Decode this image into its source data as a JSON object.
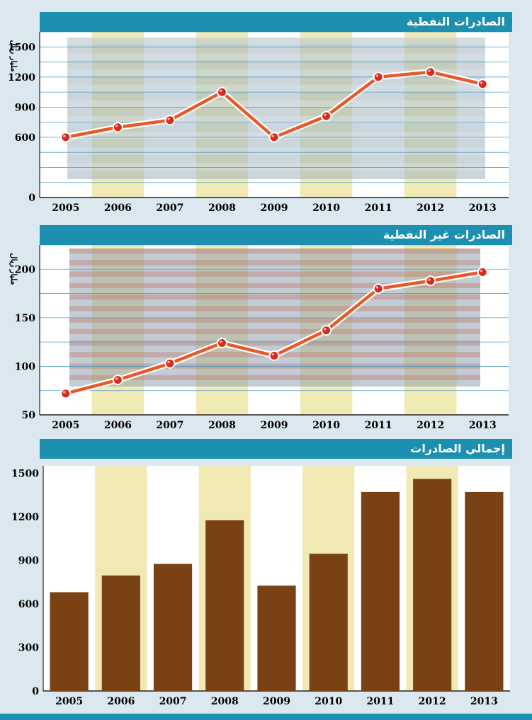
{
  "chart_data": [
    {
      "type": "line",
      "title": "الصادرات النفطية",
      "ylabel": "مليار ريال",
      "categories": [
        "2005",
        "2006",
        "2007",
        "2008",
        "2009",
        "2010",
        "2011",
        "2012",
        "2013"
      ],
      "values": [
        600,
        700,
        770,
        1050,
        600,
        810,
        1200,
        1250,
        1130
      ],
      "yticks": [
        0,
        600,
        900,
        1200,
        1500
      ],
      "ylim": [
        0,
        1650
      ],
      "colors": {
        "line": "#e8592a",
        "marker": "#d92b1c",
        "band": "#f1e9b4"
      }
    },
    {
      "type": "line",
      "title": "الصادرات غير النفطية",
      "ylabel": "مليار ريال",
      "categories": [
        "2005",
        "2006",
        "2007",
        "2008",
        "2009",
        "2010",
        "2011",
        "2012",
        "2013"
      ],
      "values": [
        72,
        86,
        103,
        124,
        111,
        137,
        180,
        188,
        197
      ],
      "yticks": [
        50,
        100,
        150,
        200
      ],
      "ylim": [
        50,
        225
      ],
      "colors": {
        "line": "#e8592a",
        "marker": "#d92b1c",
        "band": "#f1e9b4"
      }
    },
    {
      "type": "bar",
      "title": "إجمالي الصادرات",
      "categories": [
        "2005",
        "2006",
        "2007",
        "2008",
        "2009",
        "2010",
        "2011",
        "2012",
        "2013"
      ],
      "values": [
        680,
        795,
        875,
        1175,
        725,
        945,
        1370,
        1460,
        1370
      ],
      "yticks": [
        0,
        300,
        600,
        900,
        1200,
        1500
      ],
      "ylim": [
        0,
        1550
      ],
      "colors": {
        "bar": "#7a4214",
        "band": "#f1e9b4"
      }
    }
  ]
}
